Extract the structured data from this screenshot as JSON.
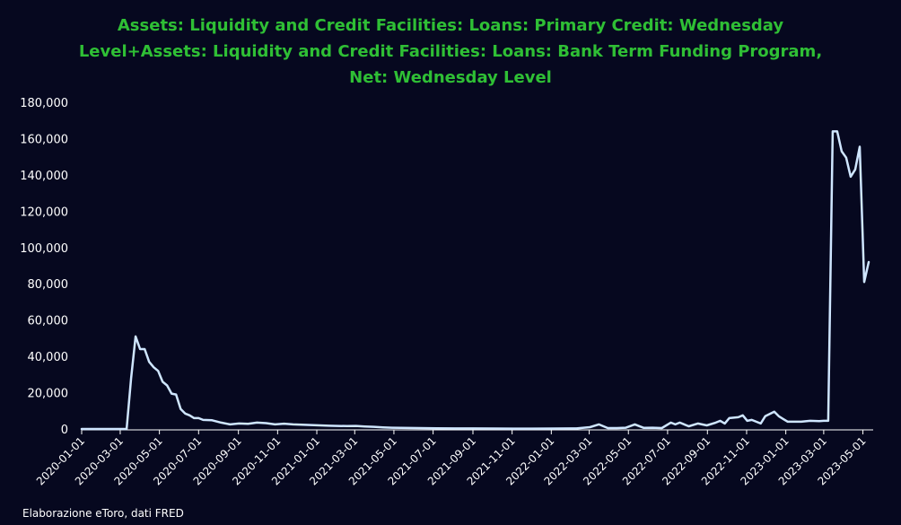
{
  "title_lines": [
    "Assets: Liquidity and Credit Facilities: Loans: Primary Credit: Wednesday",
    "Level+Assets: Liquidity and Credit Facilities: Loans: Bank Term Funding Program,",
    "Net: Wednesday Level"
  ],
  "footer": "Elaborazione eToro, dati FRED",
  "colors": {
    "background": "#06081f",
    "title": "#2fbf35",
    "line": "#cfe6ff",
    "text": "#ffffff"
  },
  "chart_data": {
    "type": "line",
    "title": "Assets: Liquidity and Credit Facilities: Loans: Primary Credit: Wednesday Level+Assets: Liquidity and Credit Facilities: Loans: Bank Term Funding Program, Net: Wednesday Level",
    "xlabel": "",
    "ylabel": "",
    "grid": false,
    "legend": "none",
    "ylim": [
      0,
      180000
    ],
    "xlim": [
      "2020-01-01",
      "2023-05-17"
    ],
    "yticks": [
      0,
      20000,
      40000,
      60000,
      80000,
      100000,
      120000,
      140000,
      160000,
      180000
    ],
    "ytick_labels": [
      "0",
      "20,000",
      "40,000",
      "60,000",
      "80,000",
      "100,000",
      "120,000",
      "140,000",
      "160,000",
      "180,000"
    ],
    "xticks": [
      "2020-01-01",
      "2020-03-01",
      "2020-05-01",
      "2020-07-01",
      "2020-09-01",
      "2020-11-01",
      "2021-01-01",
      "2021-03-01",
      "2021-05-01",
      "2021-07-01",
      "2021-09-01",
      "2021-11-01",
      "2022-01-01",
      "2022-03-01",
      "2022-05-01",
      "2022-07-01",
      "2022-09-01",
      "2022-11-01",
      "2023-01-01",
      "2023-03-01",
      "2023-05-01"
    ],
    "series": [
      {
        "name": "",
        "points": [
          [
            "2020-01-01",
            0
          ],
          [
            "2020-03-11",
            0
          ],
          [
            "2020-03-18",
            28000
          ],
          [
            "2020-03-25",
            51000
          ],
          [
            "2020-04-01",
            44000
          ],
          [
            "2020-04-08",
            44000
          ],
          [
            "2020-04-15",
            37000
          ],
          [
            "2020-04-22",
            34000
          ],
          [
            "2020-04-29",
            32000
          ],
          [
            "2020-05-06",
            26000
          ],
          [
            "2020-05-13",
            24000
          ],
          [
            "2020-05-20",
            19500
          ],
          [
            "2020-05-27",
            19000
          ],
          [
            "2020-06-03",
            11000
          ],
          [
            "2020-06-10",
            8500
          ],
          [
            "2020-06-17",
            7500
          ],
          [
            "2020-06-24",
            6000
          ],
          [
            "2020-07-01",
            6000
          ],
          [
            "2020-07-08",
            5000
          ],
          [
            "2020-07-22",
            4800
          ],
          [
            "2020-08-05",
            3500
          ],
          [
            "2020-08-19",
            2500
          ],
          [
            "2020-09-02",
            3000
          ],
          [
            "2020-09-16",
            2800
          ],
          [
            "2020-09-30",
            3500
          ],
          [
            "2020-10-14",
            3200
          ],
          [
            "2020-10-28",
            2500
          ],
          [
            "2020-11-11",
            2900
          ],
          [
            "2020-11-25",
            2500
          ],
          [
            "2020-12-09",
            2300
          ],
          [
            "2020-12-23",
            2200
          ],
          [
            "2021-01-06",
            2000
          ],
          [
            "2021-01-20",
            1800
          ],
          [
            "2021-02-03",
            1700
          ],
          [
            "2021-02-17",
            1600
          ],
          [
            "2021-03-03",
            1700
          ],
          [
            "2021-03-17",
            1400
          ],
          [
            "2021-03-31",
            1200
          ],
          [
            "2021-04-14",
            900
          ],
          [
            "2021-04-28",
            700
          ],
          [
            "2021-05-12",
            600
          ],
          [
            "2021-06-09",
            500
          ],
          [
            "2021-07-07",
            400
          ],
          [
            "2021-08-04",
            300
          ],
          [
            "2021-09-01",
            300
          ],
          [
            "2021-10-06",
            250
          ],
          [
            "2021-11-03",
            200
          ],
          [
            "2021-12-01",
            200
          ],
          [
            "2022-01-05",
            250
          ],
          [
            "2022-02-09",
            300
          ],
          [
            "2022-03-02",
            1000
          ],
          [
            "2022-03-16",
            2500
          ],
          [
            "2022-03-30",
            500
          ],
          [
            "2022-04-13",
            500
          ],
          [
            "2022-04-27",
            700
          ],
          [
            "2022-05-11",
            2500
          ],
          [
            "2022-05-25",
            600
          ],
          [
            "2022-06-08",
            700
          ],
          [
            "2022-06-22",
            500
          ],
          [
            "2022-07-06",
            3500
          ],
          [
            "2022-07-13",
            2500
          ],
          [
            "2022-07-20",
            3500
          ],
          [
            "2022-08-03",
            1500
          ],
          [
            "2022-08-17",
            3000
          ],
          [
            "2022-08-31",
            2000
          ],
          [
            "2022-09-14",
            3500
          ],
          [
            "2022-09-21",
            4500
          ],
          [
            "2022-09-28",
            3000
          ],
          [
            "2022-10-05",
            6000
          ],
          [
            "2022-10-19",
            6500
          ],
          [
            "2022-10-26",
            7500
          ],
          [
            "2022-11-02",
            4500
          ],
          [
            "2022-11-09",
            5000
          ],
          [
            "2022-11-23",
            3000
          ],
          [
            "2022-11-30",
            7000
          ],
          [
            "2022-12-14",
            9500
          ],
          [
            "2022-12-21",
            7000
          ],
          [
            "2022-12-28",
            5500
          ],
          [
            "2023-01-04",
            4000
          ],
          [
            "2023-01-25",
            4000
          ],
          [
            "2023-02-08",
            4500
          ],
          [
            "2023-02-22",
            4300
          ],
          [
            "2023-03-01",
            4500
          ],
          [
            "2023-03-08",
            4500
          ],
          [
            "2023-03-15",
            164000
          ],
          [
            "2023-03-22",
            164000
          ],
          [
            "2023-03-29",
            153000
          ],
          [
            "2023-04-05",
            149500
          ],
          [
            "2023-04-12",
            139000
          ],
          [
            "2023-04-19",
            143000
          ],
          [
            "2023-04-26",
            155500
          ],
          [
            "2023-05-03",
            81000
          ],
          [
            "2023-05-10",
            92000
          ]
        ]
      }
    ]
  }
}
